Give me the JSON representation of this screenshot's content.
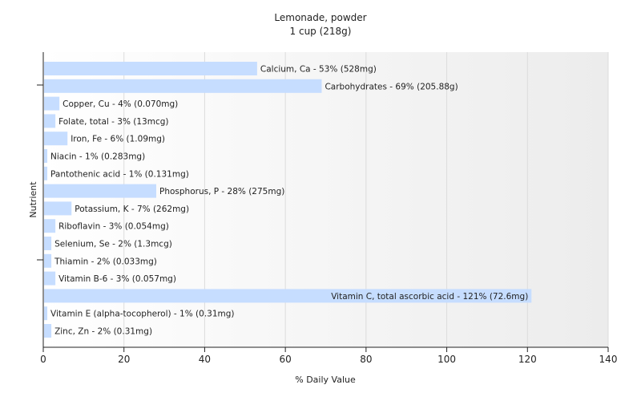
{
  "chart_data": {
    "type": "bar",
    "orientation": "horizontal",
    "title": "Lemonade, powder",
    "subtitle": "1 cup (218g)",
    "xlabel": "% Daily Value",
    "ylabel": "Nutrient",
    "xlim": [
      0,
      140
    ],
    "xticks": [
      0,
      20,
      40,
      60,
      80,
      100,
      120,
      140
    ],
    "grid": true,
    "legend": "none",
    "bar_color": "#c6ddff",
    "categories": [
      "Calcium, Ca",
      "Carbohydrates",
      "Copper, Cu",
      "Folate, total",
      "Iron, Fe",
      "Niacin",
      "Pantothenic acid",
      "Phosphorus, P",
      "Potassium, K",
      "Riboflavin",
      "Selenium, Se",
      "Thiamin",
      "Vitamin B-6",
      "Vitamin C, total ascorbic acid",
      "Vitamin E (alpha-tocopherol)",
      "Zinc, Zn"
    ],
    "values": [
      53,
      69,
      4,
      3,
      6,
      1,
      1,
      28,
      7,
      3,
      2,
      2,
      3,
      121,
      1,
      2
    ],
    "labels": [
      "Calcium, Ca - 53% (528mg)",
      "Carbohydrates - 69% (205.88g)",
      "Copper, Cu - 4% (0.070mg)",
      "Folate, total - 3% (13mcg)",
      "Iron, Fe - 6% (1.09mg)",
      "Niacin - 1% (0.283mg)",
      "Pantothenic acid - 1% (0.131mg)",
      "Phosphorus, P - 28% (275mg)",
      "Potassium, K - 7% (262mg)",
      "Riboflavin - 3% (0.054mg)",
      "Selenium, Se - 2% (1.3mcg)",
      "Thiamin - 2% (0.033mg)",
      "Vitamin B-6 - 3% (0.057mg)",
      "Vitamin C, total ascorbic acid - 121% (72.6mg)",
      "Vitamin E (alpha-tocopherol) - 1% (0.31mg)",
      "Zinc, Zn - 2% (0.31mg)"
    ]
  }
}
